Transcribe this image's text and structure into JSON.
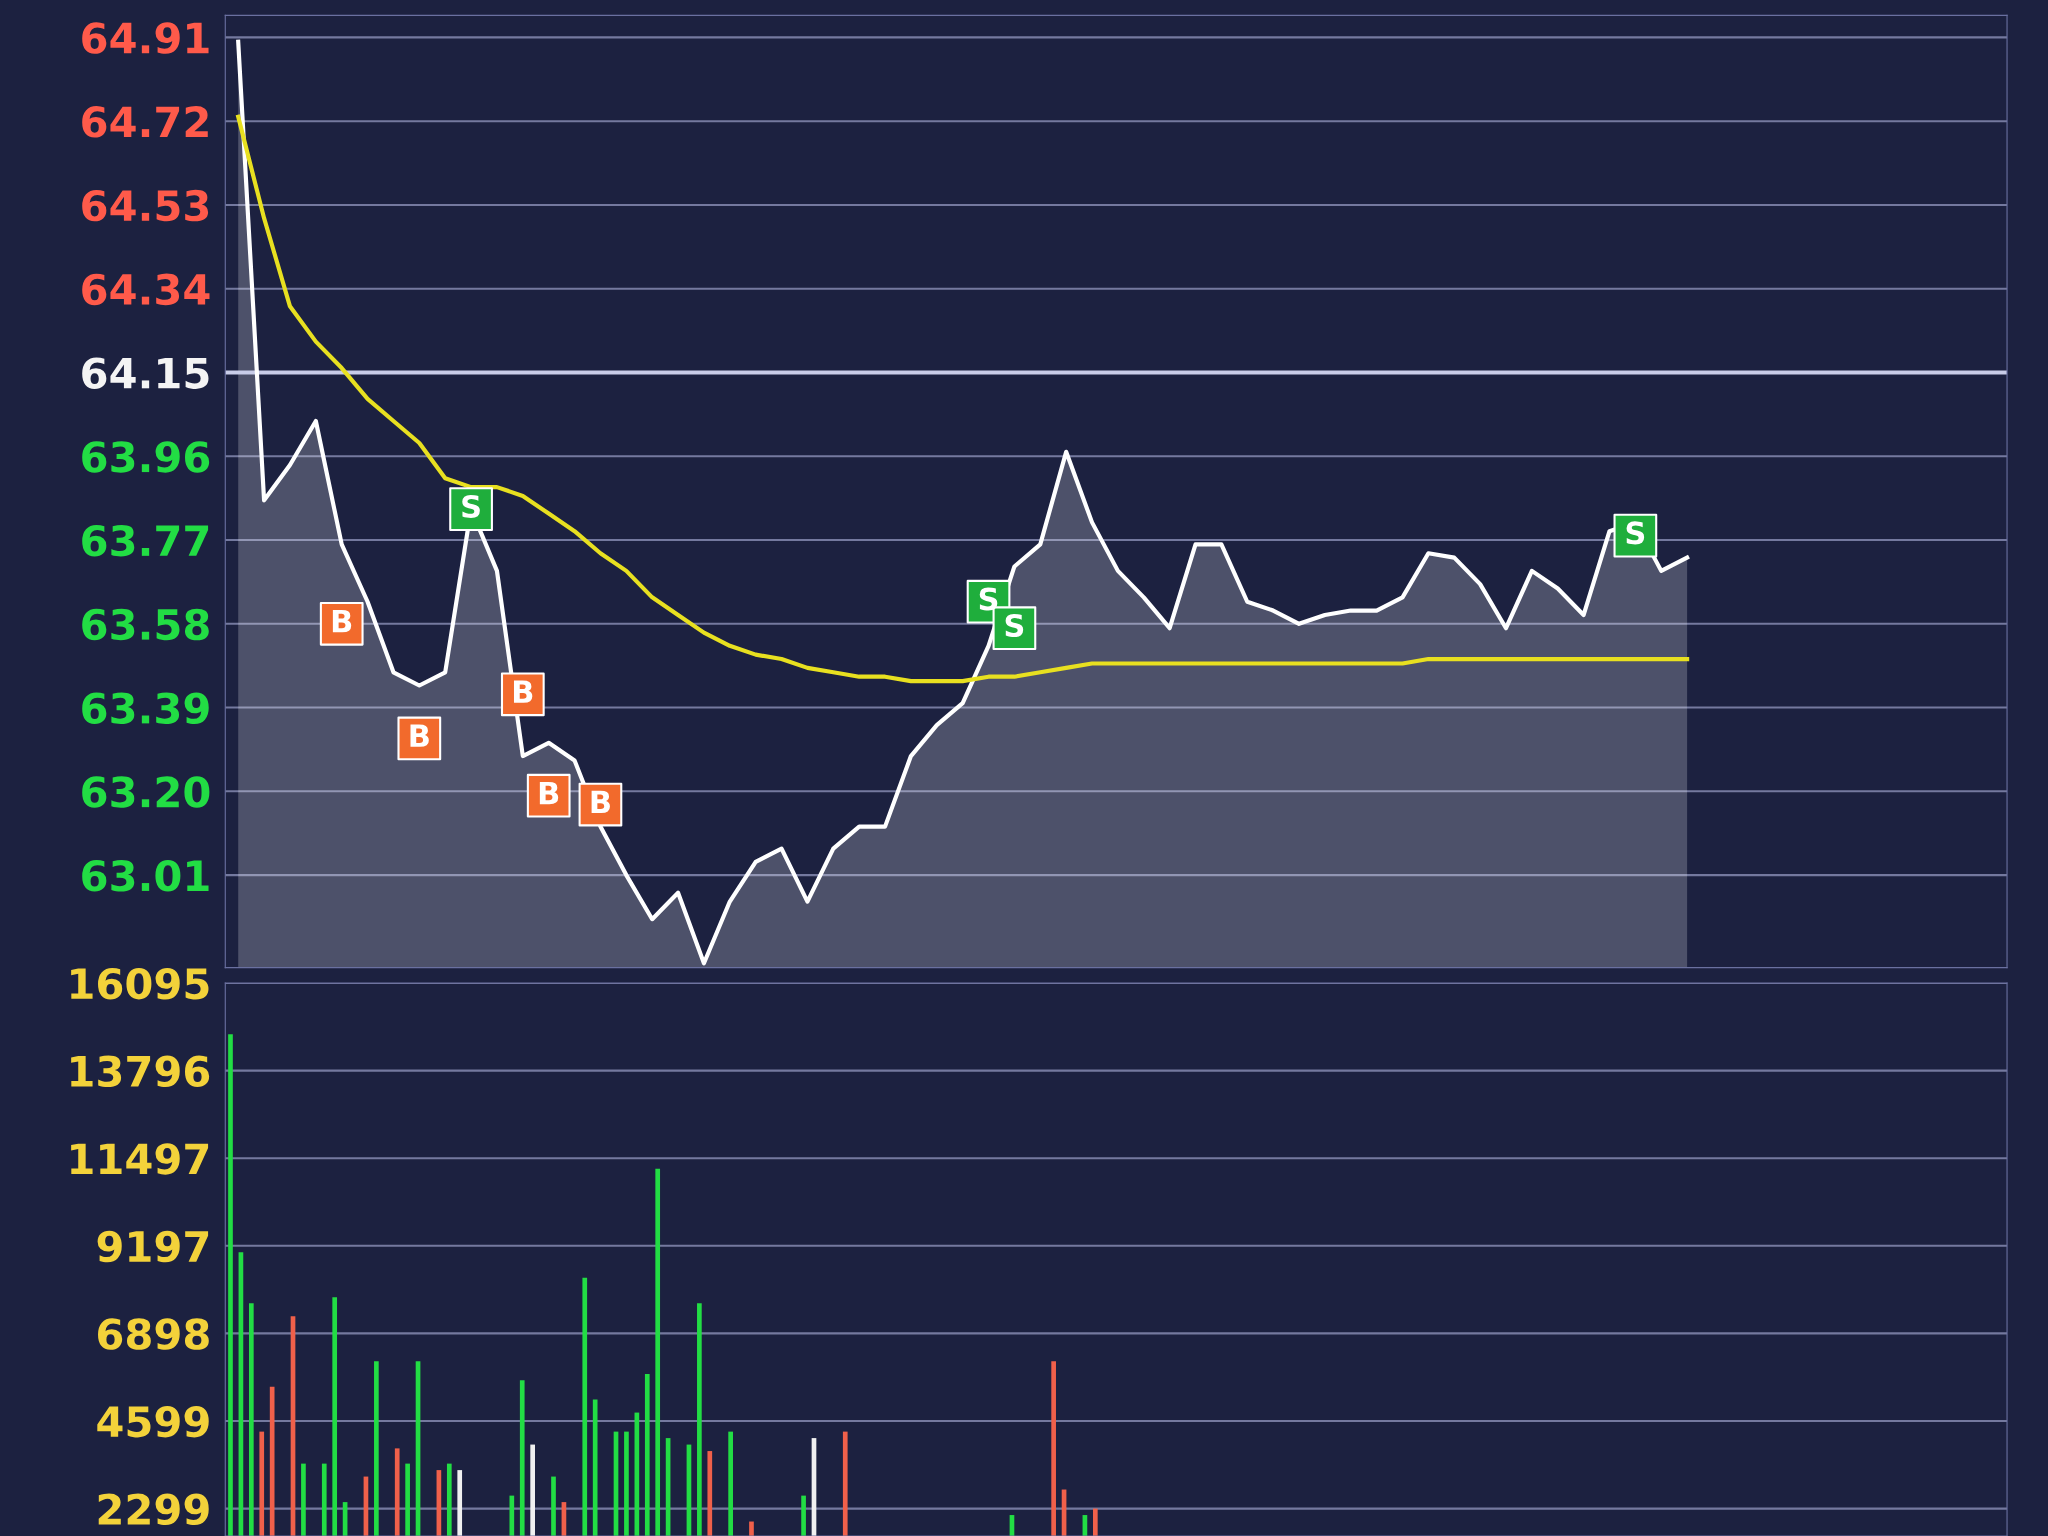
{
  "chart_data": [
    {
      "type": "area",
      "categories": [
        null,
        null,
        null,
        null,
        null,
        null,
        null,
        null,
        null,
        null,
        null,
        null,
        null,
        null,
        null,
        null,
        null,
        null,
        null,
        null,
        null,
        null,
        null,
        null,
        null,
        null,
        null,
        null,
        null,
        null,
        null,
        null,
        null,
        null,
        null,
        null,
        null,
        null,
        null,
        null,
        null,
        null,
        null,
        null,
        null,
        null,
        null,
        null,
        null,
        null,
        null,
        null,
        null,
        null,
        null,
        null,
        null
      ],
      "ylim": [
        62.8,
        64.96
      ],
      "yticks": [
        64.91,
        64.72,
        64.53,
        64.34,
        64.15,
        63.96,
        63.77,
        63.58,
        63.39,
        {
          "value": 63.2,
          "label": "63.20"
        },
        63.01
      ],
      "tick_labels": "y",
      "grid": "y",
      "legend": false,
      "ref_lines": [
        {
          "axis": "y",
          "value": 64.15,
          "color": "#c8cce8"
        }
      ],
      "series": [
        {
          "type": "area",
          "color": "#ffffff",
          "values": [
            64.9,
            63.86,
            63.94,
            64.04,
            63.76,
            63.63,
            63.47,
            63.44,
            63.47,
            63.84,
            63.7,
            63.28,
            63.31,
            63.27,
            63.12,
            63.01,
            62.91,
            62.97,
            62.81,
            62.95,
            63.04,
            63.07,
            62.95,
            63.07,
            63.12,
            63.12,
            63.28,
            63.35,
            63.4,
            63.53,
            63.71,
            63.76,
            63.97,
            63.81,
            63.7,
            63.64,
            63.57,
            63.76,
            63.76,
            63.63,
            63.61,
            63.58,
            63.6,
            63.61,
            63.61,
            63.64,
            63.74,
            63.73,
            63.67,
            63.57,
            63.7,
            63.66,
            63.6,
            63.79,
            63.81,
            63.7,
            63.73
          ]
        },
        {
          "type": "line",
          "color": "#e8e020",
          "values": [
            64.73,
            64.5,
            64.3,
            64.22,
            64.16,
            64.09,
            64.04,
            63.99,
            63.91,
            63.89,
            63.89,
            63.87,
            63.83,
            63.79,
            63.74,
            63.7,
            63.64,
            63.6,
            63.56,
            63.53,
            63.51,
            63.5,
            63.48,
            63.47,
            63.46,
            63.46,
            63.45,
            63.45,
            63.45,
            63.46,
            63.46,
            63.47,
            63.48,
            63.49,
            63.49,
            63.49,
            63.49,
            63.49,
            63.49,
            63.49,
            63.49,
            63.49,
            63.49,
            63.49,
            63.49,
            63.49,
            63.5,
            63.5,
            63.5,
            63.5,
            63.5,
            63.5,
            63.5,
            63.5,
            63.5,
            63.5,
            63.5
          ]
        },
        {
          "type": "scatter",
          "marker": "square",
          "color": "#f26a2c",
          "values": [
            null,
            null,
            null,
            null,
            63.58,
            null,
            null,
            63.32,
            null,
            null,
            null,
            63.42,
            63.19,
            null,
            63.17,
            null,
            null,
            null,
            null,
            null,
            null,
            null,
            null,
            null,
            null,
            null,
            null,
            null,
            null,
            null,
            null,
            null,
            null,
            null,
            null,
            null,
            null,
            null,
            null,
            null,
            null,
            null,
            null,
            null,
            null,
            null,
            null,
            null,
            null,
            null,
            null,
            null,
            null,
            null,
            null,
            null,
            null
          ],
          "value_labels": [
            null,
            null,
            null,
            null,
            "B",
            null,
            null,
            "B",
            null,
            null,
            null,
            "B",
            "B",
            null,
            "B",
            null,
            null,
            null,
            null,
            null,
            null,
            null,
            null,
            null,
            null,
            null,
            null,
            null,
            null,
            null,
            null,
            null,
            null,
            null,
            null,
            null,
            null,
            null,
            null,
            null,
            null,
            null,
            null,
            null,
            null,
            null,
            null,
            null,
            null,
            null,
            null,
            null,
            null,
            null,
            null,
            null,
            null
          ]
        },
        {
          "type": "scatter",
          "marker": "square",
          "color": "#1fae3c",
          "values": [
            null,
            null,
            null,
            null,
            null,
            null,
            null,
            null,
            null,
            63.84,
            null,
            null,
            null,
            null,
            null,
            null,
            null,
            null,
            null,
            null,
            null,
            null,
            null,
            null,
            null,
            null,
            null,
            null,
            null,
            63.63,
            63.57,
            null,
            null,
            null,
            null,
            null,
            null,
            null,
            null,
            null,
            null,
            null,
            null,
            null,
            null,
            null,
            null,
            null,
            null,
            null,
            null,
            null,
            null,
            null,
            63.78,
            null,
            null
          ],
          "value_labels": [
            null,
            null,
            null,
            null,
            null,
            null,
            null,
            null,
            null,
            "S",
            null,
            null,
            null,
            null,
            null,
            null,
            null,
            null,
            null,
            null,
            null,
            null,
            null,
            null,
            null,
            null,
            null,
            null,
            null,
            "S",
            "S",
            null,
            null,
            null,
            null,
            null,
            null,
            null,
            null,
            null,
            null,
            null,
            null,
            null,
            null,
            null,
            null,
            null,
            null,
            null,
            null,
            null,
            null,
            null,
            "S",
            null,
            null
          ]
        }
      ]
    },
    {
      "type": "bar",
      "categories": [
        null,
        null,
        null,
        null,
        null,
        null,
        null,
        null,
        null,
        null,
        null,
        null,
        null,
        null,
        null,
        null,
        null,
        null,
        null,
        null,
        null,
        null,
        null,
        null,
        null,
        null,
        null,
        null,
        null,
        null,
        null,
        null,
        null,
        null,
        null,
        null,
        null,
        null,
        null,
        null,
        null,
        null,
        null,
        null,
        null,
        null,
        null,
        null,
        null,
        null,
        null,
        null,
        null,
        null,
        null,
        null,
        null,
        null,
        null,
        null,
        null,
        null,
        null,
        null,
        null,
        null,
        null,
        null,
        null,
        null,
        null,
        null,
        null,
        null,
        null,
        null,
        null,
        null,
        null,
        null,
        null,
        null,
        null,
        null,
        null,
        null,
        null,
        null,
        null,
        null,
        null,
        null,
        null,
        null,
        null,
        null,
        null,
        null,
        null,
        null,
        null,
        null,
        null,
        null,
        null,
        null,
        null,
        null,
        null,
        null,
        null,
        null,
        null,
        null,
        null,
        null,
        null,
        null,
        null,
        null,
        null,
        null,
        null,
        null,
        null,
        null,
        null,
        null,
        null,
        null,
        null,
        null,
        null,
        null,
        null,
        null,
        null,
        null,
        null,
        null,
        null,
        null,
        null,
        null,
        null,
        null,
        null,
        null,
        null,
        null,
        null,
        null,
        null,
        null,
        null,
        null,
        null,
        null,
        null,
        null,
        null,
        null,
        null,
        null,
        null,
        null,
        null,
        null,
        null,
        null,
        null
      ],
      "ylim": [
        1580,
        16095
      ],
      "yticks": [
        16095,
        13796,
        11497,
        9197,
        6898,
        4599,
        2299
      ],
      "tick_labels": "y",
      "grid": "y",
      "legend": false,
      "series": [
        {
          "values": [
            14750,
            9030,
            7690,
            4320,
            5500,
            null,
            7350,
            3480,
            null,
            3480,
            7850,
            2470,
            null,
            3140,
            6170,
            null,
            3880,
            3480,
            6170,
            null,
            3310,
            3480,
            3310,
            null,
            null,
            null,
            null,
            2640,
            5670,
            3980,
            null,
            3140,
            2470,
            null,
            8360,
            5160,
            null,
            4320,
            4320,
            4820,
            5830,
            11220,
            4150,
            null,
            3980,
            7690,
            3810,
            null,
            4320,
            null,
            1960,
            null,
            null,
            null,
            null,
            2640,
            4150,
            null,
            null,
            4320,
            null,
            null,
            null,
            null,
            null,
            null,
            null,
            null,
            null,
            null,
            null,
            null,
            null,
            null,
            null,
            2130,
            null,
            null,
            null,
            6170,
            2800,
            null,
            2130,
            2300,
            null,
            null,
            null,
            null,
            null,
            null,
            null,
            null,
            null,
            null,
            null,
            null,
            null,
            null,
            null,
            null,
            null,
            null,
            null,
            null,
            null,
            null,
            null,
            null,
            null,
            null,
            null,
            null,
            null,
            null,
            null,
            null,
            null,
            null,
            null,
            null,
            null,
            null,
            null,
            null,
            null,
            null,
            null,
            null,
            null,
            null,
            null,
            null,
            null,
            null,
            null,
            null,
            null,
            null,
            null,
            null,
            null,
            null,
            null,
            null,
            null,
            null,
            null,
            null,
            null,
            null,
            null,
            null,
            null,
            null,
            null,
            null,
            null,
            null,
            null,
            null,
            null,
            null,
            null,
            null,
            null,
            null,
            null,
            null,
            null,
            null,
            null
          ],
          "colors": [
            "#22dd44",
            "#22dd44",
            "#22dd44",
            "#f0604a",
            "#f0604a",
            null,
            "#f0604a",
            "#22dd44",
            null,
            "#22dd44",
            "#22dd44",
            "#22dd44",
            null,
            "#f0604a",
            "#22dd44",
            null,
            "#f0604a",
            "#22dd44",
            "#22dd44",
            null,
            "#f0604a",
            "#22dd44",
            "#f0f0f0",
            null,
            null,
            null,
            null,
            "#22dd44",
            "#22dd44",
            "#f0f0f0",
            null,
            "#22dd44",
            "#f0604a",
            null,
            "#22dd44",
            "#22dd44",
            null,
            "#22dd44",
            "#22dd44",
            "#22dd44",
            "#22dd44",
            "#22dd44",
            "#22dd44",
            null,
            "#22dd44",
            "#22dd44",
            "#f0604a",
            null,
            "#22dd44",
            null,
            "#f0604a",
            null,
            null,
            null,
            null,
            "#22dd44",
            "#f0f0f0",
            null,
            null,
            "#f0604a",
            null,
            null,
            null,
            null,
            null,
            null,
            null,
            null,
            null,
            null,
            null,
            null,
            null,
            null,
            null,
            "#22dd44",
            null,
            null,
            null,
            "#f0604a",
            "#f0604a",
            null,
            "#22dd44",
            "#f0604a",
            null,
            null,
            null,
            null,
            null,
            null,
            null,
            null,
            null,
            null,
            null,
            null,
            null,
            null,
            null,
            null,
            null,
            null,
            null,
            null,
            null,
            null,
            null,
            null,
            null,
            null,
            null,
            null,
            null,
            null,
            null,
            null,
            null,
            null,
            null,
            null,
            null,
            null,
            null,
            null,
            null,
            null,
            null,
            null,
            null,
            null,
            null,
            null,
            null,
            null,
            null,
            null,
            null,
            null,
            null,
            null,
            null,
            null,
            null,
            null,
            null,
            null,
            null,
            null,
            null,
            null,
            null,
            null,
            null,
            null,
            null,
            null,
            null,
            null,
            null,
            null,
            null,
            null,
            null,
            null,
            null,
            null,
            null,
            null,
            null,
            null,
            null
          ]
        }
      ]
    }
  ]
}
